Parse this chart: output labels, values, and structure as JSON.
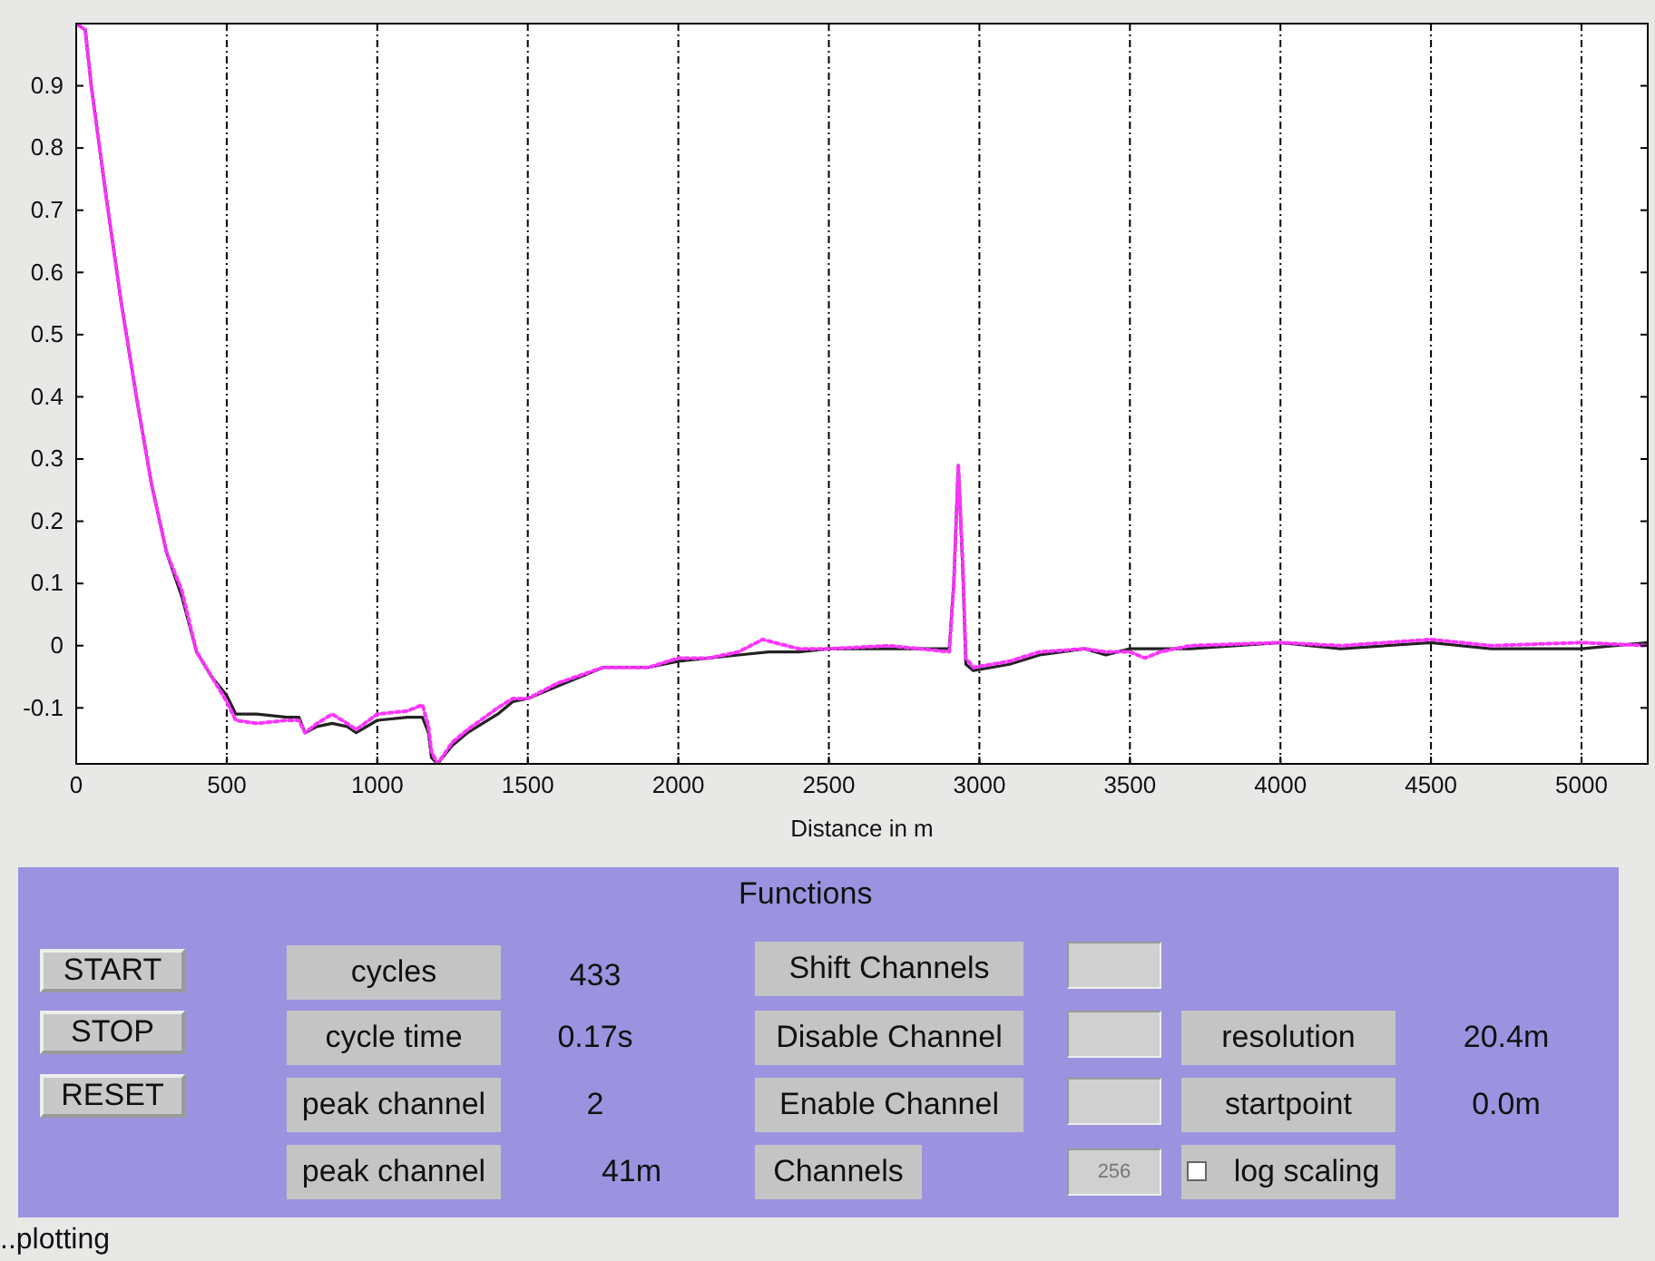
{
  "chart_data": {
    "type": "line",
    "xlabel": "Distance in m",
    "xlim": [
      0,
      5220
    ],
    "ylim": [
      -0.19,
      1
    ],
    "xticks": [
      0,
      500,
      1000,
      1500,
      2000,
      2500,
      3000,
      3500,
      4000,
      4500,
      5000
    ],
    "yticks": [
      -0.1,
      0,
      0.1,
      0.2,
      0.3,
      0.4,
      0.5,
      0.6,
      0.7,
      0.8,
      0.9
    ],
    "grid": "x",
    "series": [
      {
        "color": "#222222",
        "line_style": "solid",
        "x": [
          0,
          30,
          50,
          100,
          150,
          200,
          250,
          300,
          350,
          400,
          450,
          500,
          530,
          600,
          700,
          740,
          760,
          800,
          850,
          900,
          930,
          1000,
          1100,
          1150,
          1170,
          1180,
          1200,
          1250,
          1300,
          1400,
          1450,
          1500,
          1600,
          1750,
          1900,
          2000,
          2100,
          2200,
          2300,
          2400,
          2500,
          2700,
          2900,
          2915,
          2930,
          2945,
          2955,
          2980,
          3100,
          3200,
          3350,
          3420,
          3500,
          3700,
          4000,
          4200,
          4500,
          4700,
          5000,
          5220
        ],
        "values": [
          1.0,
          0.99,
          0.9,
          0.72,
          0.55,
          0.4,
          0.26,
          0.15,
          0.08,
          -0.01,
          -0.05,
          -0.08,
          -0.11,
          -0.11,
          -0.115,
          -0.115,
          -0.14,
          -0.13,
          -0.125,
          -0.13,
          -0.14,
          -0.12,
          -0.115,
          -0.115,
          -0.14,
          -0.18,
          -0.19,
          -0.16,
          -0.14,
          -0.11,
          -0.09,
          -0.085,
          -0.065,
          -0.035,
          -0.035,
          -0.025,
          -0.02,
          -0.015,
          -0.01,
          -0.01,
          -0.005,
          -0.005,
          -0.005,
          0.1,
          0.29,
          0.12,
          -0.03,
          -0.04,
          -0.03,
          -0.015,
          -0.005,
          -0.015,
          -0.005,
          -0.005,
          0.005,
          -0.005,
          0.005,
          -0.005,
          -0.005,
          0.005
        ]
      },
      {
        "color": "#ff33ff",
        "line_style": "dotted",
        "x": [
          0,
          30,
          50,
          100,
          150,
          200,
          250,
          300,
          350,
          400,
          450,
          500,
          530,
          600,
          700,
          740,
          760,
          800,
          850,
          900,
          930,
          1000,
          1100,
          1150,
          1170,
          1180,
          1200,
          1250,
          1300,
          1400,
          1450,
          1500,
          1600,
          1750,
          1900,
          2000,
          2100,
          2200,
          2280,
          2400,
          2500,
          2700,
          2900,
          2915,
          2930,
          2945,
          2955,
          2980,
          3100,
          3200,
          3350,
          3420,
          3500,
          3550,
          3600,
          3700,
          4000,
          4200,
          4500,
          4700,
          5000,
          5220
        ],
        "values": [
          1.0,
          0.99,
          0.9,
          0.72,
          0.55,
          0.4,
          0.26,
          0.15,
          0.09,
          -0.01,
          -0.05,
          -0.09,
          -0.12,
          -0.125,
          -0.12,
          -0.12,
          -0.14,
          -0.125,
          -0.11,
          -0.125,
          -0.135,
          -0.11,
          -0.105,
          -0.095,
          -0.13,
          -0.17,
          -0.19,
          -0.155,
          -0.135,
          -0.1,
          -0.085,
          -0.085,
          -0.06,
          -0.035,
          -0.035,
          -0.02,
          -0.02,
          -0.01,
          0.01,
          -0.005,
          -0.005,
          0.0,
          -0.01,
          0.1,
          0.29,
          0.13,
          -0.02,
          -0.035,
          -0.025,
          -0.01,
          -0.005,
          -0.01,
          -0.01,
          -0.02,
          -0.01,
          0.0,
          0.005,
          0.0,
          0.01,
          0.0,
          0.005,
          0.0
        ]
      }
    ],
    "annotations": [
      "Functions",
      "START",
      "STOP",
      "RESET",
      "cycles",
      "433",
      "cycle time",
      "0.17s",
      "peak channel",
      "2",
      "peak channel",
      "41m",
      "Shift Channels",
      "Disable Channel",
      "Enable Channel",
      "Channels",
      "256",
      "resolution",
      "20.4m",
      "startpoint",
      "0.0m",
      "log scaling",
      "..plotting"
    ]
  }
}
